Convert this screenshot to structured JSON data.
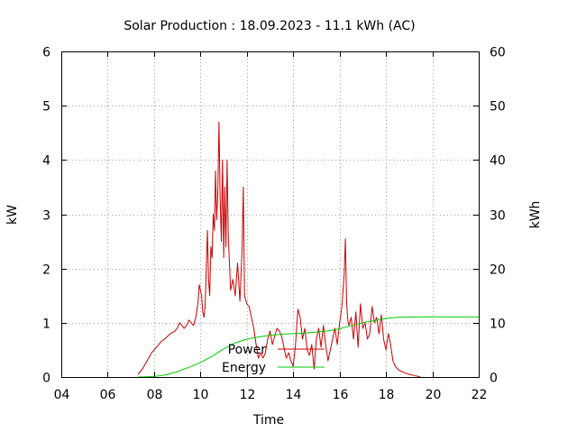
{
  "chart_data": {
    "type": "line",
    "title": "Solar Production : 18.09.2023 - 11.1 kWh (AC)",
    "xlabel": "Time",
    "ylabel_left": "kW",
    "ylabel_right": "kWh",
    "xlim": [
      4,
      22
    ],
    "ylim_left": [
      0,
      6
    ],
    "ylim_right": [
      0,
      60
    ],
    "x_ticks": [
      4,
      6,
      8,
      10,
      12,
      14,
      16,
      18,
      20,
      22
    ],
    "x_tick_labels": [
      "04",
      "06",
      "08",
      "10",
      "12",
      "14",
      "16",
      "18",
      "20",
      "22"
    ],
    "y_ticks_left": [
      0,
      1,
      2,
      3,
      4,
      5,
      6
    ],
    "y_tick_labels_left": [
      "0",
      "1",
      "2",
      "3",
      "4",
      "5",
      "6"
    ],
    "y_ticks_right": [
      0,
      10,
      20,
      30,
      40,
      50,
      60
    ],
    "y_tick_labels_right": [
      "0",
      "10",
      "20",
      "30",
      "40",
      "50",
      "60"
    ],
    "grid": true,
    "legend_placement": "inside, lower center",
    "series": [
      {
        "name": "Power",
        "axis": "left",
        "color": "#cc0000",
        "x": [
          7.3,
          7.5,
          7.7,
          7.9,
          8.1,
          8.3,
          8.5,
          8.7,
          8.9,
          9.0,
          9.1,
          9.2,
          9.3,
          9.4,
          9.5,
          9.6,
          9.7,
          9.8,
          9.9,
          9.95,
          10.0,
          10.05,
          10.1,
          10.15,
          10.2,
          10.3,
          10.35,
          10.4,
          10.45,
          10.5,
          10.55,
          10.6,
          10.65,
          10.7,
          10.75,
          10.8,
          10.85,
          10.9,
          10.95,
          11.0,
          11.05,
          11.1,
          11.15,
          11.2,
          11.3,
          11.4,
          11.5,
          11.6,
          11.7,
          11.8,
          11.85,
          11.9,
          12.0,
          12.1,
          12.2,
          12.3,
          12.4,
          12.5,
          12.6,
          12.7,
          12.8,
          12.9,
          13.0,
          13.1,
          13.2,
          13.3,
          13.4,
          13.5,
          13.6,
          13.7,
          13.8,
          13.9,
          14.0,
          14.1,
          14.2,
          14.3,
          14.4,
          14.5,
          14.6,
          14.7,
          14.8,
          14.9,
          15.0,
          15.1,
          15.2,
          15.3,
          15.4,
          15.5,
          15.6,
          15.7,
          15.8,
          15.9,
          16.0,
          16.1,
          16.2,
          16.25,
          16.3,
          16.35,
          16.4,
          16.5,
          16.6,
          16.7,
          16.8,
          16.9,
          17.0,
          17.1,
          17.2,
          17.3,
          17.4,
          17.5,
          17.6,
          17.7,
          17.8,
          17.9,
          18.0,
          18.1,
          18.2,
          18.3,
          18.4,
          18.5,
          18.6,
          18.7,
          18.8,
          19.0,
          19.2,
          19.4,
          19.5
        ],
        "y": [
          0.05,
          0.15,
          0.3,
          0.45,
          0.55,
          0.65,
          0.72,
          0.8,
          0.85,
          0.9,
          1.0,
          0.95,
          0.9,
          0.95,
          1.05,
          1.0,
          0.95,
          1.1,
          1.4,
          1.7,
          1.6,
          1.5,
          1.2,
          1.1,
          1.3,
          2.7,
          1.8,
          1.5,
          2.4,
          2.2,
          3.0,
          2.7,
          3.8,
          2.9,
          3.4,
          4.7,
          3.3,
          2.5,
          4.0,
          2.2,
          3.5,
          2.4,
          4.0,
          2.6,
          1.6,
          1.8,
          1.5,
          2.1,
          1.4,
          2.4,
          3.5,
          1.5,
          1.35,
          1.3,
          1.1,
          0.9,
          0.6,
          0.35,
          0.45,
          0.35,
          0.45,
          0.7,
          0.85,
          0.6,
          0.75,
          0.9,
          0.85,
          0.75,
          0.55,
          0.35,
          0.45,
          0.3,
          0.2,
          0.6,
          1.25,
          1.1,
          0.7,
          0.9,
          0.5,
          0.4,
          0.6,
          0.15,
          0.7,
          0.9,
          0.55,
          0.95,
          0.6,
          0.3,
          0.5,
          0.7,
          0.9,
          0.6,
          1.0,
          1.3,
          1.9,
          2.55,
          1.4,
          1.05,
          0.95,
          1.1,
          0.7,
          1.2,
          0.55,
          1.35,
          0.9,
          1.0,
          0.7,
          0.8,
          1.3,
          1.0,
          1.1,
          0.8,
          1.15,
          0.7,
          0.5,
          0.8,
          0.6,
          0.3,
          0.2,
          0.15,
          0.12,
          0.1,
          0.08,
          0.05,
          0.03,
          0.01,
          0.0
        ]
      },
      {
        "name": "Energy",
        "axis": "right",
        "color": "#00cc00",
        "x": [
          7.3,
          8.0,
          8.5,
          9.0,
          9.5,
          10.0,
          10.5,
          11.0,
          11.5,
          12.0,
          12.5,
          13.0,
          13.5,
          14.0,
          14.5,
          15.0,
          15.5,
          16.0,
          16.5,
          17.0,
          17.5,
          18.0,
          18.5,
          19.0,
          19.5,
          20.0,
          21.0,
          22.0
        ],
        "y": [
          0.0,
          0.1,
          0.4,
          1.0,
          1.8,
          2.7,
          3.8,
          5.2,
          6.3,
          7.0,
          7.4,
          7.7,
          7.9,
          8.0,
          8.1,
          8.3,
          8.5,
          8.9,
          9.5,
          10.0,
          10.4,
          10.8,
          11.0,
          11.05,
          11.1,
          11.1,
          11.1,
          11.1
        ]
      }
    ]
  }
}
